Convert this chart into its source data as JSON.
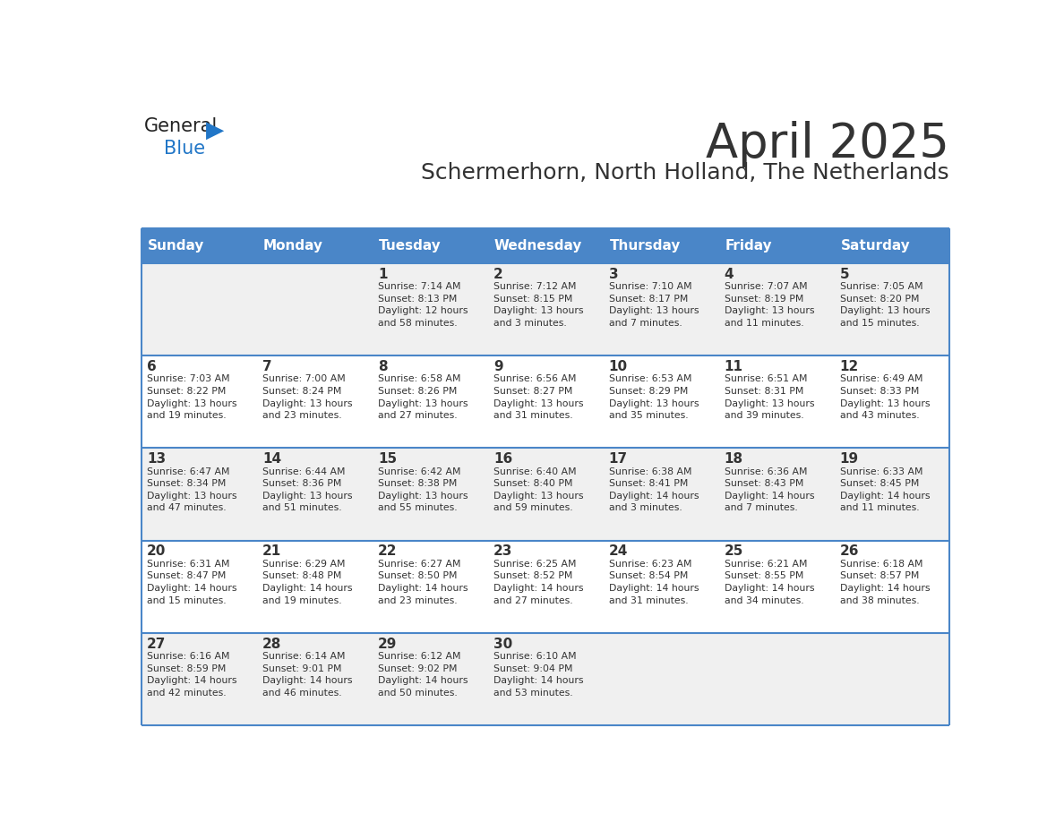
{
  "title": "April 2025",
  "subtitle": "Schermerhorn, North Holland, The Netherlands",
  "header_bg": "#4a86c8",
  "header_text_color": "#ffffff",
  "cell_bg_odd": "#f0f0f0",
  "cell_bg_even": "#ffffff",
  "day_names": [
    "Sunday",
    "Monday",
    "Tuesday",
    "Wednesday",
    "Thursday",
    "Friday",
    "Saturday"
  ],
  "grid_line_color": "#4a86c8",
  "date_color": "#333333",
  "info_color": "#333333",
  "logo_general_color": "#222222",
  "logo_blue_color": "#2176c7",
  "weeks": [
    [
      {
        "day": "",
        "info": ""
      },
      {
        "day": "",
        "info": ""
      },
      {
        "day": "1",
        "info": "Sunrise: 7:14 AM\nSunset: 8:13 PM\nDaylight: 12 hours\nand 58 minutes."
      },
      {
        "day": "2",
        "info": "Sunrise: 7:12 AM\nSunset: 8:15 PM\nDaylight: 13 hours\nand 3 minutes."
      },
      {
        "day": "3",
        "info": "Sunrise: 7:10 AM\nSunset: 8:17 PM\nDaylight: 13 hours\nand 7 minutes."
      },
      {
        "day": "4",
        "info": "Sunrise: 7:07 AM\nSunset: 8:19 PM\nDaylight: 13 hours\nand 11 minutes."
      },
      {
        "day": "5",
        "info": "Sunrise: 7:05 AM\nSunset: 8:20 PM\nDaylight: 13 hours\nand 15 minutes."
      }
    ],
    [
      {
        "day": "6",
        "info": "Sunrise: 7:03 AM\nSunset: 8:22 PM\nDaylight: 13 hours\nand 19 minutes."
      },
      {
        "day": "7",
        "info": "Sunrise: 7:00 AM\nSunset: 8:24 PM\nDaylight: 13 hours\nand 23 minutes."
      },
      {
        "day": "8",
        "info": "Sunrise: 6:58 AM\nSunset: 8:26 PM\nDaylight: 13 hours\nand 27 minutes."
      },
      {
        "day": "9",
        "info": "Sunrise: 6:56 AM\nSunset: 8:27 PM\nDaylight: 13 hours\nand 31 minutes."
      },
      {
        "day": "10",
        "info": "Sunrise: 6:53 AM\nSunset: 8:29 PM\nDaylight: 13 hours\nand 35 minutes."
      },
      {
        "day": "11",
        "info": "Sunrise: 6:51 AM\nSunset: 8:31 PM\nDaylight: 13 hours\nand 39 minutes."
      },
      {
        "day": "12",
        "info": "Sunrise: 6:49 AM\nSunset: 8:33 PM\nDaylight: 13 hours\nand 43 minutes."
      }
    ],
    [
      {
        "day": "13",
        "info": "Sunrise: 6:47 AM\nSunset: 8:34 PM\nDaylight: 13 hours\nand 47 minutes."
      },
      {
        "day": "14",
        "info": "Sunrise: 6:44 AM\nSunset: 8:36 PM\nDaylight: 13 hours\nand 51 minutes."
      },
      {
        "day": "15",
        "info": "Sunrise: 6:42 AM\nSunset: 8:38 PM\nDaylight: 13 hours\nand 55 minutes."
      },
      {
        "day": "16",
        "info": "Sunrise: 6:40 AM\nSunset: 8:40 PM\nDaylight: 13 hours\nand 59 minutes."
      },
      {
        "day": "17",
        "info": "Sunrise: 6:38 AM\nSunset: 8:41 PM\nDaylight: 14 hours\nand 3 minutes."
      },
      {
        "day": "18",
        "info": "Sunrise: 6:36 AM\nSunset: 8:43 PM\nDaylight: 14 hours\nand 7 minutes."
      },
      {
        "day": "19",
        "info": "Sunrise: 6:33 AM\nSunset: 8:45 PM\nDaylight: 14 hours\nand 11 minutes."
      }
    ],
    [
      {
        "day": "20",
        "info": "Sunrise: 6:31 AM\nSunset: 8:47 PM\nDaylight: 14 hours\nand 15 minutes."
      },
      {
        "day": "21",
        "info": "Sunrise: 6:29 AM\nSunset: 8:48 PM\nDaylight: 14 hours\nand 19 minutes."
      },
      {
        "day": "22",
        "info": "Sunrise: 6:27 AM\nSunset: 8:50 PM\nDaylight: 14 hours\nand 23 minutes."
      },
      {
        "day": "23",
        "info": "Sunrise: 6:25 AM\nSunset: 8:52 PM\nDaylight: 14 hours\nand 27 minutes."
      },
      {
        "day": "24",
        "info": "Sunrise: 6:23 AM\nSunset: 8:54 PM\nDaylight: 14 hours\nand 31 minutes."
      },
      {
        "day": "25",
        "info": "Sunrise: 6:21 AM\nSunset: 8:55 PM\nDaylight: 14 hours\nand 34 minutes."
      },
      {
        "day": "26",
        "info": "Sunrise: 6:18 AM\nSunset: 8:57 PM\nDaylight: 14 hours\nand 38 minutes."
      }
    ],
    [
      {
        "day": "27",
        "info": "Sunrise: 6:16 AM\nSunset: 8:59 PM\nDaylight: 14 hours\nand 42 minutes."
      },
      {
        "day": "28",
        "info": "Sunrise: 6:14 AM\nSunset: 9:01 PM\nDaylight: 14 hours\nand 46 minutes."
      },
      {
        "day": "29",
        "info": "Sunrise: 6:12 AM\nSunset: 9:02 PM\nDaylight: 14 hours\nand 50 minutes."
      },
      {
        "day": "30",
        "info": "Sunrise: 6:10 AM\nSunset: 9:04 PM\nDaylight: 14 hours\nand 53 minutes."
      },
      {
        "day": "",
        "info": ""
      },
      {
        "day": "",
        "info": ""
      },
      {
        "day": "",
        "info": ""
      }
    ]
  ]
}
